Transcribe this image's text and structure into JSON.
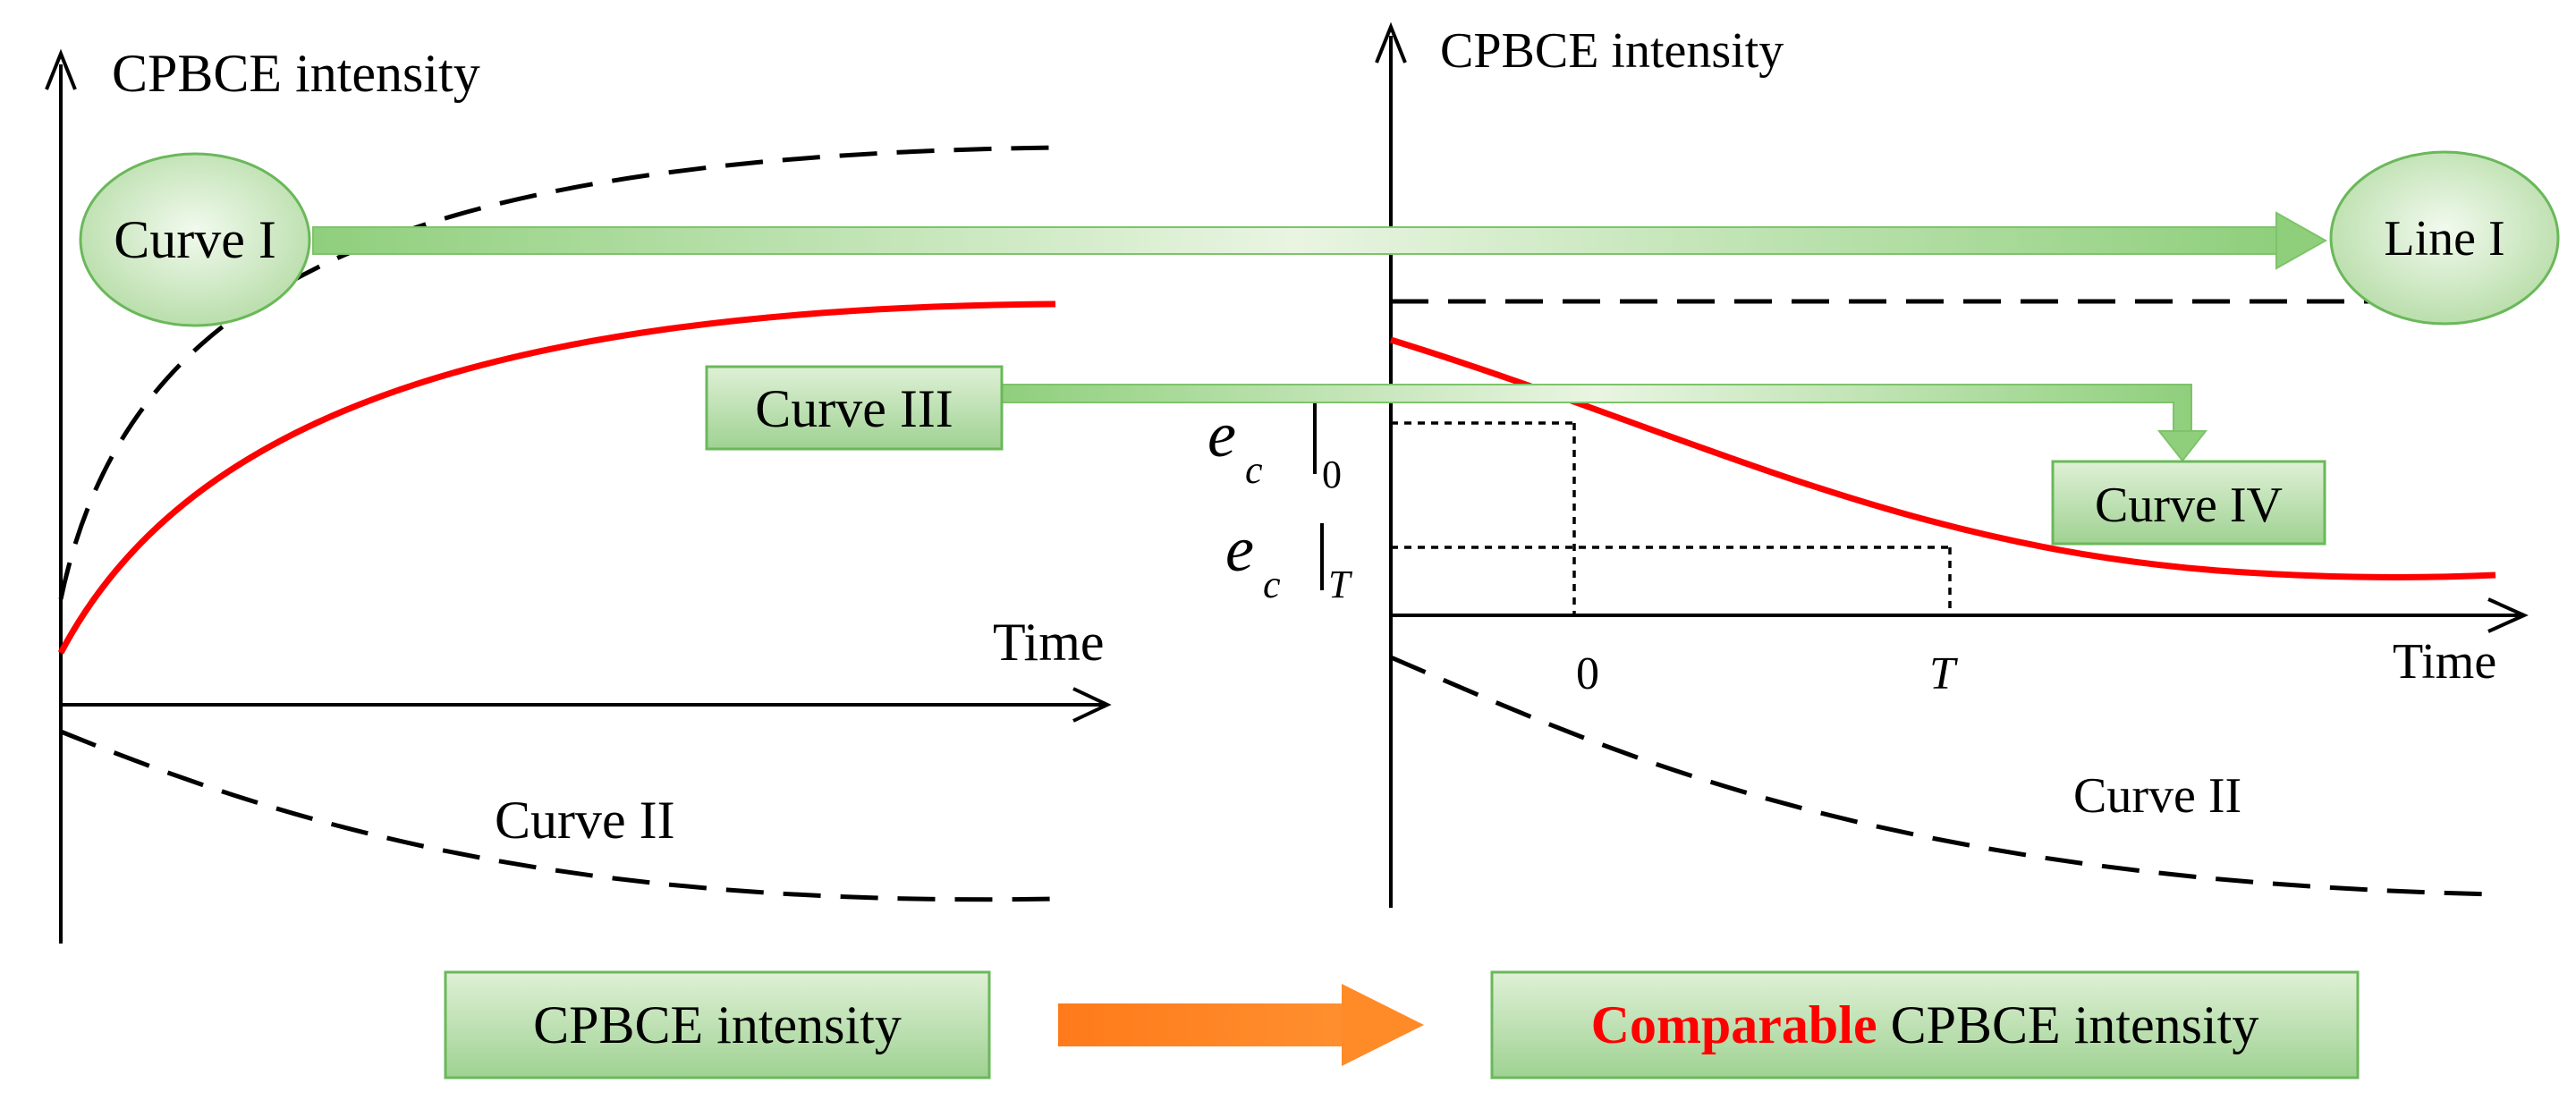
{
  "left_panel": {
    "y_axis_label": "CPBCE intensity",
    "x_axis_label": "Time",
    "curve_1_label": "Curve I",
    "curve_2_label": "Curve II",
    "curve_3_label": "Curve III"
  },
  "right_panel": {
    "y_axis_label": "CPBCE intensity",
    "x_axis_label": "Time",
    "line_1_label": "Line I",
    "curve_2_label": "Curve II",
    "curve_4_label": "Curve IV",
    "tick_zero": "0",
    "tick_T": "T",
    "ec_symbol": "e",
    "ec_subscript": "c",
    "ec0_sub": "0",
    "ecT_sub": "T"
  },
  "bottom": {
    "left_box": "CPBCE intensity",
    "right_box_highlight": "Comparable",
    "right_box_rest": " CPBCE intensity"
  },
  "colors": {
    "red_curve": "#ff0000",
    "green_fill": "#c2e3b4",
    "green_box": "#9fd292",
    "green_border": "#6ab85a",
    "orange_arrow": "#ff7f1f"
  }
}
